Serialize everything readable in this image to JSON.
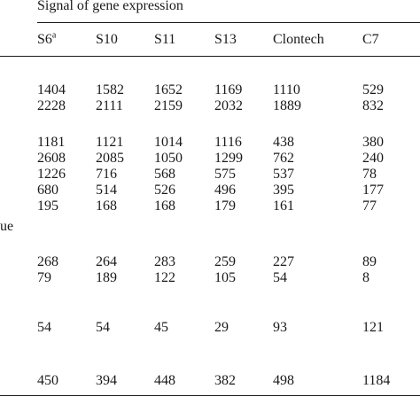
{
  "title": "Signal of gene expression",
  "headers": [
    "S6",
    "S10",
    "S11",
    "S13",
    "Clontech",
    "C7"
  ],
  "header_sup": "a",
  "stub_fragment": "ue",
  "rows": [
    [
      "1404",
      "1582",
      "1652",
      "1169",
      "1110",
      "529"
    ],
    [
      "2228",
      "2111",
      "2159",
      "2032",
      "1889",
      "832"
    ],
    [
      "1181",
      "1121",
      "1014",
      "1116",
      "438",
      "380"
    ],
    [
      "2608",
      "2085",
      "1050",
      "1299",
      "762",
      "240"
    ],
    [
      "1226",
      "716",
      "568",
      "575",
      "537",
      "78"
    ],
    [
      "680",
      "514",
      "526",
      "496",
      "395",
      "177"
    ],
    [
      "195",
      "168",
      "168",
      "179",
      "161",
      "77"
    ],
    [
      "268",
      "264",
      "283",
      "259",
      "227",
      "89"
    ],
    [
      "79",
      "189",
      "122",
      "105",
      "54",
      "8"
    ],
    [
      "54",
      "54",
      "45",
      "29",
      "93",
      "121"
    ],
    [
      "450",
      "394",
      "448",
      "382",
      "498",
      "1184"
    ]
  ]
}
